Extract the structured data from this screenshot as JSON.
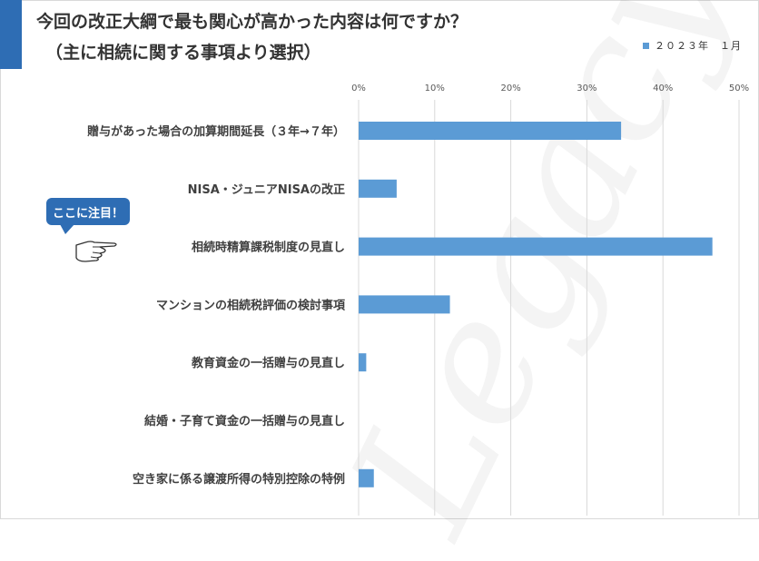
{
  "header": {
    "title": "今回の改正大綱で最も関心が高かった内容は何ですか？",
    "subtitle": "（主に相続に関する事項より選択）"
  },
  "legend": {
    "label": "２０２３年　１月"
  },
  "callout": {
    "text": "ここに注目！"
  },
  "watermark": {
    "text": "Legacy"
  },
  "colors": {
    "bar": "#5b9bd5",
    "accent": "#2e6db4",
    "grid": "#d9d9d9"
  },
  "chart_data": {
    "type": "bar",
    "orientation": "horizontal",
    "title": "今回の改正大綱で最も関心が高かった内容は何ですか？",
    "subtitle": "（主に相続に関する事項より選択）",
    "categories": [
      "贈与があった場合の加算期間延長（３年→７年）",
      "NISA・ジュニアNISAの改正",
      "相続時精算課税制度の見直し",
      "マンションの相続税評価の検討事項",
      "教育資金の一括贈与の見直し",
      "結婚・子育て資金の一括贈与の見直し",
      "空き家に係る譲渡所得の特別控除の特例"
    ],
    "series": [
      {
        "name": "２０２３年　１月",
        "values": [
          34.5,
          5,
          46.5,
          12,
          1,
          0,
          2
        ]
      }
    ],
    "xlim": [
      0,
      50
    ],
    "xticks": [
      "0%",
      "10%",
      "20%",
      "30%",
      "40%",
      "50%"
    ],
    "grid": true,
    "legend_position": "top-right"
  }
}
